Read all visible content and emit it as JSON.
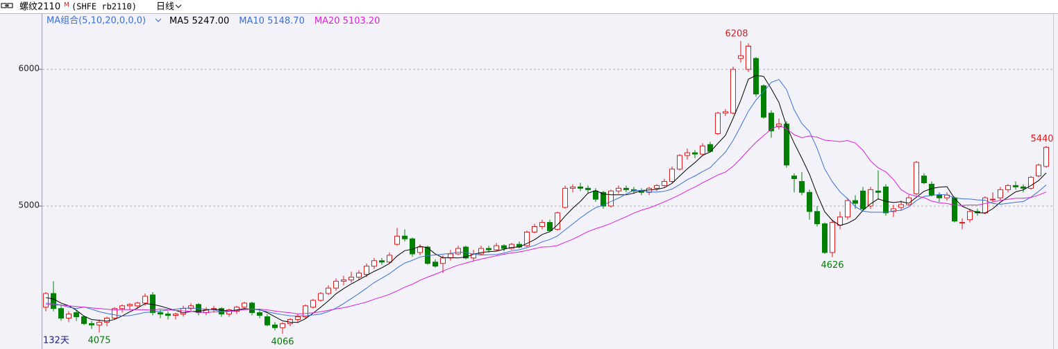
{
  "chart_data": {
    "type": "candlestick",
    "title": "螺纹2110",
    "title_mark": "M",
    "subtitle": "(SHFE rb2110)",
    "period": "日线",
    "indicator": "MA组合(5,10,20,0,0,0)",
    "footer": "132天",
    "up_color": "#e0191b",
    "down_color": "#008000",
    "ylim": [
      3954,
      6406
    ],
    "yticks": [
      5000,
      6000
    ],
    "grid": true,
    "annotations": [
      6208,
      4626,
      4075,
      4066,
      5440
    ],
    "ohlc": [
      [
        4260,
        4370,
        4230,
        4360
      ],
      [
        4360,
        4450,
        4230,
        4250
      ],
      [
        4250,
        4280,
        4160,
        4180
      ],
      [
        4180,
        4230,
        4150,
        4210
      ],
      [
        4220,
        4240,
        4160,
        4190
      ],
      [
        4190,
        4200,
        4130,
        4140
      ],
      [
        4140,
        4160,
        4100,
        4130
      ],
      [
        4130,
        4170,
        4075,
        4150
      ],
      [
        4150,
        4190,
        4120,
        4180
      ],
      [
        4180,
        4260,
        4170,
        4250
      ],
      [
        4250,
        4280,
        4220,
        4270
      ],
      [
        4270,
        4290,
        4240,
        4280
      ],
      [
        4270,
        4300,
        4250,
        4290
      ],
      [
        4290,
        4360,
        4270,
        4340
      ],
      [
        4350,
        4370,
        4200,
        4220
      ],
      [
        4220,
        4240,
        4180,
        4210
      ],
      [
        4210,
        4230,
        4170,
        4200
      ],
      [
        4200,
        4220,
        4170,
        4210
      ],
      [
        4210,
        4270,
        4190,
        4250
      ],
      [
        4250,
        4290,
        4230,
        4270
      ],
      [
        4280,
        4290,
        4200,
        4220
      ],
      [
        4220,
        4260,
        4200,
        4240
      ],
      [
        4240,
        4270,
        4220,
        4250
      ],
      [
        4250,
        4260,
        4190,
        4210
      ],
      [
        4210,
        4250,
        4190,
        4240
      ],
      [
        4230,
        4270,
        4210,
        4260
      ],
      [
        4260,
        4300,
        4240,
        4290
      ],
      [
        4290,
        4300,
        4200,
        4220
      ],
      [
        4220,
        4240,
        4180,
        4200
      ],
      [
        4190,
        4210,
        4120,
        4130
      ],
      [
        4130,
        4150,
        4090,
        4110
      ],
      [
        4110,
        4150,
        4066,
        4140
      ],
      [
        4140,
        4180,
        4120,
        4170
      ],
      [
        4170,
        4210,
        4150,
        4190
      ],
      [
        4190,
        4280,
        4180,
        4270
      ],
      [
        4260,
        4320,
        4250,
        4310
      ],
      [
        4310,
        4370,
        4300,
        4360
      ],
      [
        4360,
        4420,
        4350,
        4400
      ],
      [
        4400,
        4470,
        4380,
        4450
      ],
      [
        4450,
        4490,
        4420,
        4460
      ],
      [
        4460,
        4520,
        4440,
        4480
      ],
      [
        4480,
        4530,
        4460,
        4510
      ],
      [
        4500,
        4580,
        4480,
        4560
      ],
      [
        4560,
        4620,
        4540,
        4600
      ],
      [
        4600,
        4620,
        4570,
        4590
      ],
      [
        4590,
        4660,
        4580,
        4640
      ],
      [
        4720,
        4840,
        4710,
        4780
      ],
      [
        4780,
        4830,
        4740,
        4760
      ],
      [
        4760,
        4770,
        4630,
        4650
      ],
      [
        4660,
        4720,
        4640,
        4700
      ],
      [
        4700,
        4710,
        4570,
        4580
      ],
      [
        4590,
        4610,
        4550,
        4560
      ],
      [
        4580,
        4640,
        4510,
        4620
      ],
      [
        4620,
        4680,
        4600,
        4650
      ],
      [
        4650,
        4710,
        4640,
        4690
      ],
      [
        4700,
        4710,
        4610,
        4620
      ],
      [
        4620,
        4680,
        4600,
        4650
      ],
      [
        4650,
        4710,
        4640,
        4690
      ],
      [
        4690,
        4710,
        4660,
        4680
      ],
      [
        4680,
        4730,
        4670,
        4710
      ],
      [
        4710,
        4720,
        4670,
        4690
      ],
      [
        4690,
        4730,
        4680,
        4720
      ],
      [
        4720,
        4740,
        4690,
        4700
      ],
      [
        4710,
        4820,
        4700,
        4810
      ],
      [
        4810,
        4870,
        4800,
        4850
      ],
      [
        4850,
        4900,
        4830,
        4880
      ],
      [
        4880,
        4900,
        4810,
        4820
      ],
      [
        4830,
        4960,
        4820,
        4950
      ],
      [
        4990,
        5150,
        4980,
        5130
      ],
      [
        5130,
        5160,
        5100,
        5140
      ],
      [
        5140,
        5170,
        5110,
        5130
      ],
      [
        5130,
        5150,
        5090,
        5120
      ],
      [
        5110,
        5130,
        5030,
        5050
      ],
      [
        5100,
        5110,
        4980,
        5000
      ],
      [
        5000,
        5120,
        4990,
        5110
      ],
      [
        5110,
        5150,
        5090,
        5130
      ],
      [
        5130,
        5150,
        5100,
        5120
      ],
      [
        5120,
        5140,
        5090,
        5110
      ],
      [
        5110,
        5130,
        5080,
        5100
      ],
      [
        5100,
        5140,
        5080,
        5130
      ],
      [
        5130,
        5160,
        5110,
        5150
      ],
      [
        5150,
        5200,
        5140,
        5180
      ],
      [
        5180,
        5290,
        5170,
        5270
      ],
      [
        5270,
        5380,
        5260,
        5370
      ],
      [
        5370,
        5420,
        5340,
        5390
      ],
      [
        5390,
        5410,
        5350,
        5380
      ],
      [
        5380,
        5460,
        5370,
        5440
      ],
      [
        5450,
        5470,
        5390,
        5400
      ],
      [
        5530,
        5690,
        5520,
        5680
      ],
      [
        5680,
        5710,
        5660,
        5690
      ],
      [
        5680,
        6020,
        5670,
        6000
      ],
      [
        6080,
        6208,
        6050,
        6100
      ],
      [
        6000,
        6190,
        5980,
        6170
      ],
      [
        6080,
        6090,
        5800,
        5820
      ],
      [
        5880,
        5890,
        5640,
        5650
      ],
      [
        5680,
        5700,
        5500,
        5550
      ],
      [
        5580,
        5640,
        5560,
        5600
      ],
      [
        5600,
        5620,
        5280,
        5300
      ],
      [
        5220,
        5240,
        5100,
        5200
      ],
      [
        5180,
        5250,
        5080,
        5100
      ],
      [
        5100,
        5120,
        4900,
        4960
      ],
      [
        4960,
        5000,
        4850,
        4870
      ],
      [
        4870,
        4880,
        4650,
        4660
      ],
      [
        4660,
        4900,
        4626,
        4880
      ],
      [
        4860,
        4960,
        4830,
        4920
      ],
      [
        4920,
        5060,
        4900,
        5040
      ],
      [
        5040,
        5080,
        4980,
        5020
      ],
      [
        5110,
        5140,
        4960,
        4980
      ],
      [
        5000,
        5140,
        4980,
        5120
      ],
      [
        5110,
        5260,
        5050,
        5100
      ],
      [
        5140,
        5160,
        4930,
        4950
      ],
      [
        4960,
        5010,
        4920,
        4980
      ],
      [
        4990,
        5040,
        4970,
        5010
      ],
      [
        5010,
        5080,
        5000,
        5060
      ],
      [
        5090,
        5330,
        5080,
        5320
      ],
      [
        5220,
        5240,
        5160,
        5170
      ],
      [
        5160,
        5180,
        5070,
        5080
      ],
      [
        5080,
        5100,
        5030,
        5060
      ],
      [
        5060,
        5100,
        5040,
        5080
      ],
      [
        5060,
        5070,
        4880,
        4890
      ],
      [
        4880,
        4910,
        4830,
        4880
      ],
      [
        4900,
        4980,
        4880,
        4960
      ],
      [
        4960,
        4980,
        4930,
        4950
      ],
      [
        4950,
        5070,
        4940,
        5060
      ],
      [
        5050,
        5100,
        5030,
        5050
      ],
      [
        5060,
        5140,
        5040,
        5120
      ],
      [
        5120,
        5160,
        5100,
        5150
      ],
      [
        5150,
        5180,
        5120,
        5140
      ],
      [
        5140,
        5160,
        5100,
        5130
      ],
      [
        5130,
        5220,
        5120,
        5210
      ],
      [
        5220,
        5310,
        5210,
        5300
      ],
      [
        5290,
        5440,
        5280,
        5430
      ]
    ],
    "series": [
      {
        "name": "MA5",
        "color": "#000000",
        "legend_value": {
          "value": 5247,
          "label": "5247.00"
        },
        "values": [
          4330,
          4320,
          4290,
          4270,
          4238,
          4194,
          4170,
          4164,
          4158,
          4170,
          4196,
          4226,
          4254,
          4286,
          4280,
          4268,
          4252,
          4236,
          4218,
          4228,
          4230,
          4238,
          4246,
          4238,
          4232,
          4240,
          4250,
          4244,
          4242,
          4220,
          4190,
          4160,
          4150,
          4148,
          4176,
          4216,
          4260,
          4306,
          4358,
          4396,
          4430,
          4460,
          4492,
          4522,
          4548,
          4580,
          4634,
          4674,
          4684,
          4706,
          4694,
          4650,
          4622,
          4622,
          4620,
          4628,
          4646,
          4660,
          4666,
          4670,
          4684,
          4698,
          4700,
          4726,
          4754,
          4792,
          4812,
          4862,
          4926,
          4984,
          5034,
          5094,
          5114,
          5088,
          5082,
          5082,
          5082,
          5094,
          5114,
          5118,
          5122,
          5134,
          5166,
          5220,
          5272,
          5318,
          5370,
          5396,
          5458,
          5518,
          5642,
          5774,
          5928,
          5956,
          5948,
          5858,
          5758,
          5584,
          5460,
          5350,
          5232,
          5086,
          4958,
          4894,
          4858,
          4874,
          4904,
          4968,
          5016,
          5052,
          5034,
          5026,
          5032,
          5020,
          5064,
          5108,
          5128,
          5138,
          5142,
          5056,
          4998,
          4974,
          4952,
          4948,
          4980,
          5028,
          5066,
          5104,
          5118,
          5150,
          5186,
          5242
        ]
      },
      {
        "name": "MA10",
        "color": "#3a6fd8",
        "legend_value": {
          "value": 5148.7,
          "label": "5148.70"
        },
        "values": [
          4290,
          4285,
          4275,
          4260,
          4250,
          4262,
          4245,
          4227,
          4214,
          4204,
          4195,
          4198,
          4209,
          4222,
          4225,
          4232,
          4239,
          4245,
          4252,
          4254,
          4249,
          4245,
          4241,
          4227,
          4230,
          4235,
          4244,
          4245,
          4240,
          4226,
          4215,
          4205,
          4197,
          4195,
          4198,
          4203,
          4210,
          4228,
          4253,
          4286,
          4323,
          4360,
          4399,
          4440,
          4472,
          4505,
          4547,
          4583,
          4603,
          4627,
          4637,
          4642,
          4648,
          4653,
          4663,
          4661,
          4648,
          4641,
          4644,
          4645,
          4656,
          4672,
          4680,
          4696,
          4712,
          4738,
          4755,
          4781,
          4826,
          4869,
          4913,
          4953,
          4988,
          5007,
          5033,
          5058,
          5088,
          5115,
          5114,
          5103,
          5102,
          5108,
          5124,
          5157,
          5193,
          5220,
          5252,
          5281,
          5339,
          5395,
          5480,
          5585,
          5693,
          5776,
          5837,
          5905,
          5926,
          5852,
          5704,
          5604,
          5545,
          5422,
          5271,
          5177,
          5104,
          5053,
          4995,
          4963,
          4955,
          4955,
          4954,
          4965,
          4968,
          4994,
          5040,
          5071,
          5077,
          5085,
          5081,
          5060,
          5053,
          5051,
          5045,
          5043,
          5018,
          5013,
          5020,
          5028,
          5033,
          5065,
          5107,
          5154
        ]
      },
      {
        "name": "MA20",
        "color": "#e020d8",
        "legend_value": {
          "value": 5103.2,
          "label": "5103.20"
        },
        "values": [
          4280,
          4278,
          4275,
          4270,
          4265,
          4260,
          4255,
          4250,
          4245,
          4240,
          4243,
          4242,
          4242,
          4241,
          4238,
          4247,
          4242,
          4236,
          4233,
          4229,
          4222,
          4222,
          4225,
          4225,
          4228,
          4234,
          4242,
          4245,
          4246,
          4240,
          4232,
          4225,
          4219,
          4211,
          4214,
          4219,
          4227,
          4237,
          4247,
          4256,
          4269,
          4283,
          4298,
          4318,
          4335,
          4354,
          4379,
          4406,
          4428,
          4457,
          4480,
          4501,
          4524,
          4547,
          4568,
          4583,
          4598,
          4612,
          4624,
          4636,
          4647,
          4657,
          4664,
          4675,
          4688,
          4700,
          4702,
          4711,
          4735,
          4757,
          4785,
          4813,
          4834,
          4852,
          4873,
          4898,
          4922,
          4948,
          4970,
          4986,
          5008,
          5031,
          5056,
          5082,
          5113,
          5139,
          5170,
          5198,
          5227,
          5249,
          5291,
          5347,
          5409,
          5467,
          5515,
          5563,
          5589,
          5567,
          5522,
          5500,
          5513,
          5504,
          5482,
          5477,
          5471,
          5479,
          5461,
          5408,
          5330,
          5280,
          5250,
          5194,
          5120,
          5086,
          5072,
          5062,
          5036,
          5024,
          5018,
          5008,
          5004,
          5008,
          5007,
          5019,
          5029,
          5042,
          5049,
          5057,
          5057,
          5063,
          5080,
          5103
        ]
      }
    ]
  }
}
